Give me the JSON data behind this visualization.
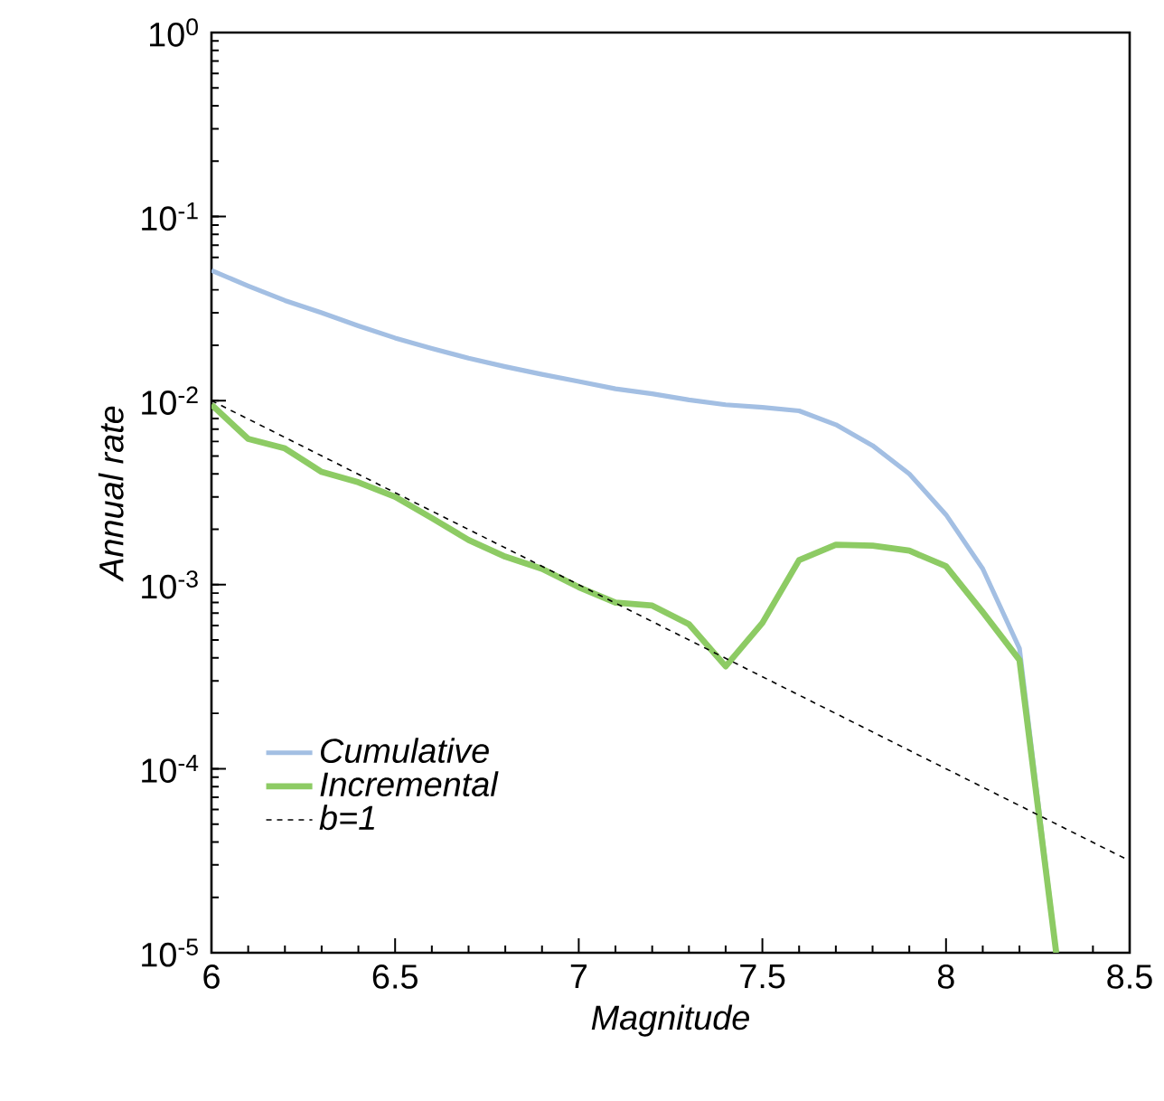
{
  "chart_data": {
    "type": "line",
    "log": "y",
    "xlabel": "Magnitude",
    "ylabel": "Annual rate",
    "xlim": [
      6,
      8.5
    ],
    "xticks": [
      6,
      6.5,
      7,
      7.5,
      8,
      8.5
    ],
    "ylim": [
      1e-05,
      1
    ],
    "yticks": [
      {
        "value": 1e-05,
        "label": "10$^{-5}$"
      },
      {
        "value": 0.0001,
        "label": "10$^{-4}$"
      },
      {
        "value": 0.001,
        "label": "10$^{-3}$"
      },
      {
        "value": 0.01,
        "label": "10$^{-2}$"
      },
      {
        "value": 0.1,
        "label": "10$^{-1}$"
      },
      {
        "value": 1,
        "label": "10$^{0}$"
      }
    ],
    "grid": false,
    "legend": "bottom left",
    "marker": "none",
    "x": [
      6.0,
      6.1,
      6.2,
      6.3,
      6.4,
      6.5,
      6.6,
      6.7,
      6.8,
      6.9,
      7.0,
      7.1,
      7.2,
      7.3,
      7.4,
      7.5,
      7.6,
      7.7,
      7.8,
      7.9,
      8.0,
      8.1,
      8.2,
      8.3
    ],
    "series": [
      {
        "name": "Cumulative",
        "color": "#a3bfe3",
        "line_style": "solid",
        "values": [
          0.051,
          0.042,
          0.035,
          0.03,
          0.0255,
          0.0219,
          0.0192,
          0.017,
          0.0153,
          0.0139,
          0.0127,
          0.0116,
          0.0109,
          0.0101,
          0.0095,
          0.0092,
          0.0088,
          0.0074,
          0.0057,
          0.004,
          0.0024,
          0.00122,
          0.00045,
          1e-05
        ]
      },
      {
        "name": "Incremental",
        "color": "#8dcb64",
        "line_style": "solid",
        "values": [
          0.0095,
          0.0062,
          0.0055,
          0.0041,
          0.0036,
          0.003,
          0.0023,
          0.00175,
          0.00142,
          0.00122,
          0.00097,
          0.0008,
          0.00077,
          0.00061,
          0.00036,
          0.00062,
          0.00136,
          0.00165,
          0.00163,
          0.00153,
          0.00126,
          0.00071,
          0.00039,
          1e-05
        ]
      },
      {
        "name": "b=1",
        "color": "#000000",
        "line_style": "dashed",
        "x": [
          6.0,
          8.5
        ],
        "values": [
          0.01,
          3.16e-05
        ]
      }
    ]
  }
}
